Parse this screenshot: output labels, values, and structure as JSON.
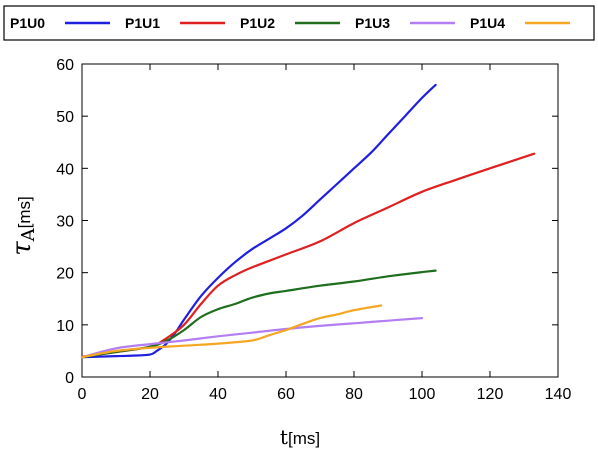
{
  "chart_data": {
    "type": "line",
    "title": "",
    "xlabel": "t",
    "xlabel_unit": "[ms]",
    "ylabel_symbol": "τ",
    "ylabel_subscript": "A",
    "ylabel_unit": "[ms]",
    "xlim": [
      0,
      140
    ],
    "ylim": [
      0,
      60
    ],
    "xticks": [
      0,
      20,
      40,
      60,
      80,
      100,
      120,
      140
    ],
    "yticks": [
      0,
      10,
      20,
      30,
      40,
      50,
      60
    ],
    "grid": false,
    "legend_position": "top",
    "series": [
      {
        "name": "P1U0",
        "color": "#1f1fe0",
        "x": [
          0,
          5,
          10,
          15,
          20,
          22,
          25,
          28,
          30,
          35,
          40,
          45,
          50,
          55,
          60,
          65,
          70,
          75,
          80,
          85,
          90,
          95,
          100,
          104
        ],
        "y": [
          3.8,
          3.9,
          4.0,
          4.1,
          4.3,
          5.0,
          6.5,
          9.0,
          11.0,
          15.5,
          19.0,
          22.0,
          24.5,
          26.5,
          28.5,
          31.0,
          34.0,
          37.0,
          40.0,
          43.0,
          46.5,
          50.0,
          53.5,
          56.0
        ]
      },
      {
        "name": "P1U1",
        "color": "#e02020",
        "x": [
          0,
          10,
          20,
          25,
          30,
          35,
          40,
          45,
          50,
          60,
          70,
          80,
          90,
          100,
          110,
          120,
          133
        ],
        "y": [
          3.9,
          4.8,
          5.8,
          7.5,
          10.0,
          14.0,
          17.5,
          19.5,
          21.0,
          23.5,
          26.0,
          29.5,
          32.5,
          35.5,
          37.8,
          40.0,
          42.8
        ]
      },
      {
        "name": "P1U2",
        "color": "#1e6e1e",
        "x": [
          0,
          10,
          20,
          25,
          30,
          35,
          40,
          45,
          50,
          55,
          60,
          70,
          80,
          90,
          100,
          104
        ],
        "y": [
          3.8,
          4.8,
          5.8,
          7.0,
          9.0,
          11.5,
          13.0,
          14.0,
          15.2,
          16.0,
          16.5,
          17.5,
          18.3,
          19.3,
          20.1,
          20.4
        ]
      },
      {
        "name": "P1U3",
        "color": "#b27ef2",
        "x": [
          0,
          10,
          20,
          30,
          40,
          50,
          60,
          70,
          80,
          90,
          100
        ],
        "y": [
          3.8,
          5.5,
          6.3,
          7.0,
          7.8,
          8.5,
          9.2,
          9.8,
          10.3,
          10.8,
          11.3
        ]
      },
      {
        "name": "P1U4",
        "color": "#f5a623",
        "x": [
          0,
          10,
          20,
          30,
          40,
          50,
          55,
          60,
          65,
          70,
          75,
          80,
          88
        ],
        "y": [
          3.8,
          5.0,
          5.6,
          6.0,
          6.4,
          7.0,
          8.0,
          9.0,
          10.2,
          11.3,
          12.0,
          12.8,
          13.7
        ]
      }
    ]
  }
}
